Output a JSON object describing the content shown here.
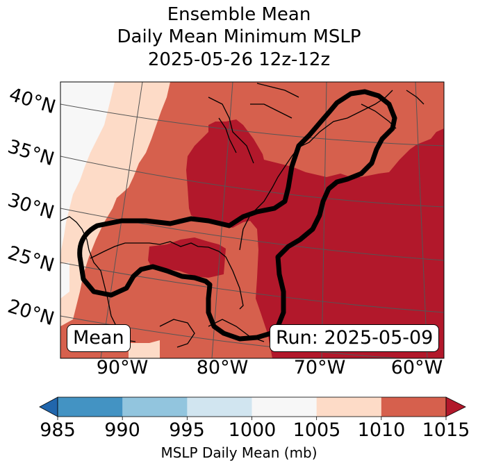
{
  "chart_data": {
    "type": "heatmap",
    "title_lines": [
      "Ensemble Mean",
      "Daily Mean Minimum MSLP",
      "2025-05-26 12z-12z"
    ],
    "projection": "Lambert Conformal",
    "extent": {
      "lon": [
        -97,
        -58
      ],
      "lat": [
        18,
        42
      ]
    },
    "lat_tick_labels": [
      "40°N",
      "35°N",
      "30°N",
      "25°N",
      "20°N"
    ],
    "lon_tick_labels": [
      "90°W",
      "80°W",
      "70°W",
      "60°W"
    ],
    "field": "MSLP Daily Mean",
    "bins": [
      {
        "range": [
          985,
          990
        ],
        "color": "#4393c3"
      },
      {
        "range": [
          990,
          995
        ],
        "color": "#92c5de"
      },
      {
        "range": [
          995,
          1000
        ],
        "color": "#d1e5f0"
      },
      {
        "range": [
          1000,
          1005
        ],
        "color": "#f7f7f7"
      },
      {
        "range": [
          1005,
          1010
        ],
        "color": "#fddbc7"
      },
      {
        "range": [
          1010,
          1015
        ],
        "color": "#d6604d"
      },
      {
        "range": [
          1015,
          null
        ],
        "color": "#b2182b"
      }
    ],
    "under_color": "#2166ac",
    "over_color": "#b2182b",
    "contour_outline": "black thick outline (ensemble member track region) from Gulf of Mexico through Florida/Bahamas up the US East Coast to Nova Scotia",
    "colorbar": {
      "ticks": [
        "985",
        "990",
        "995",
        "1000",
        "1005",
        "1010",
        "1015"
      ],
      "label": "MSLP Daily Mean (mb)",
      "extend": "both"
    }
  },
  "annotations": {
    "left_box": "Mean",
    "right_box": "Run: 2025-05-09"
  }
}
